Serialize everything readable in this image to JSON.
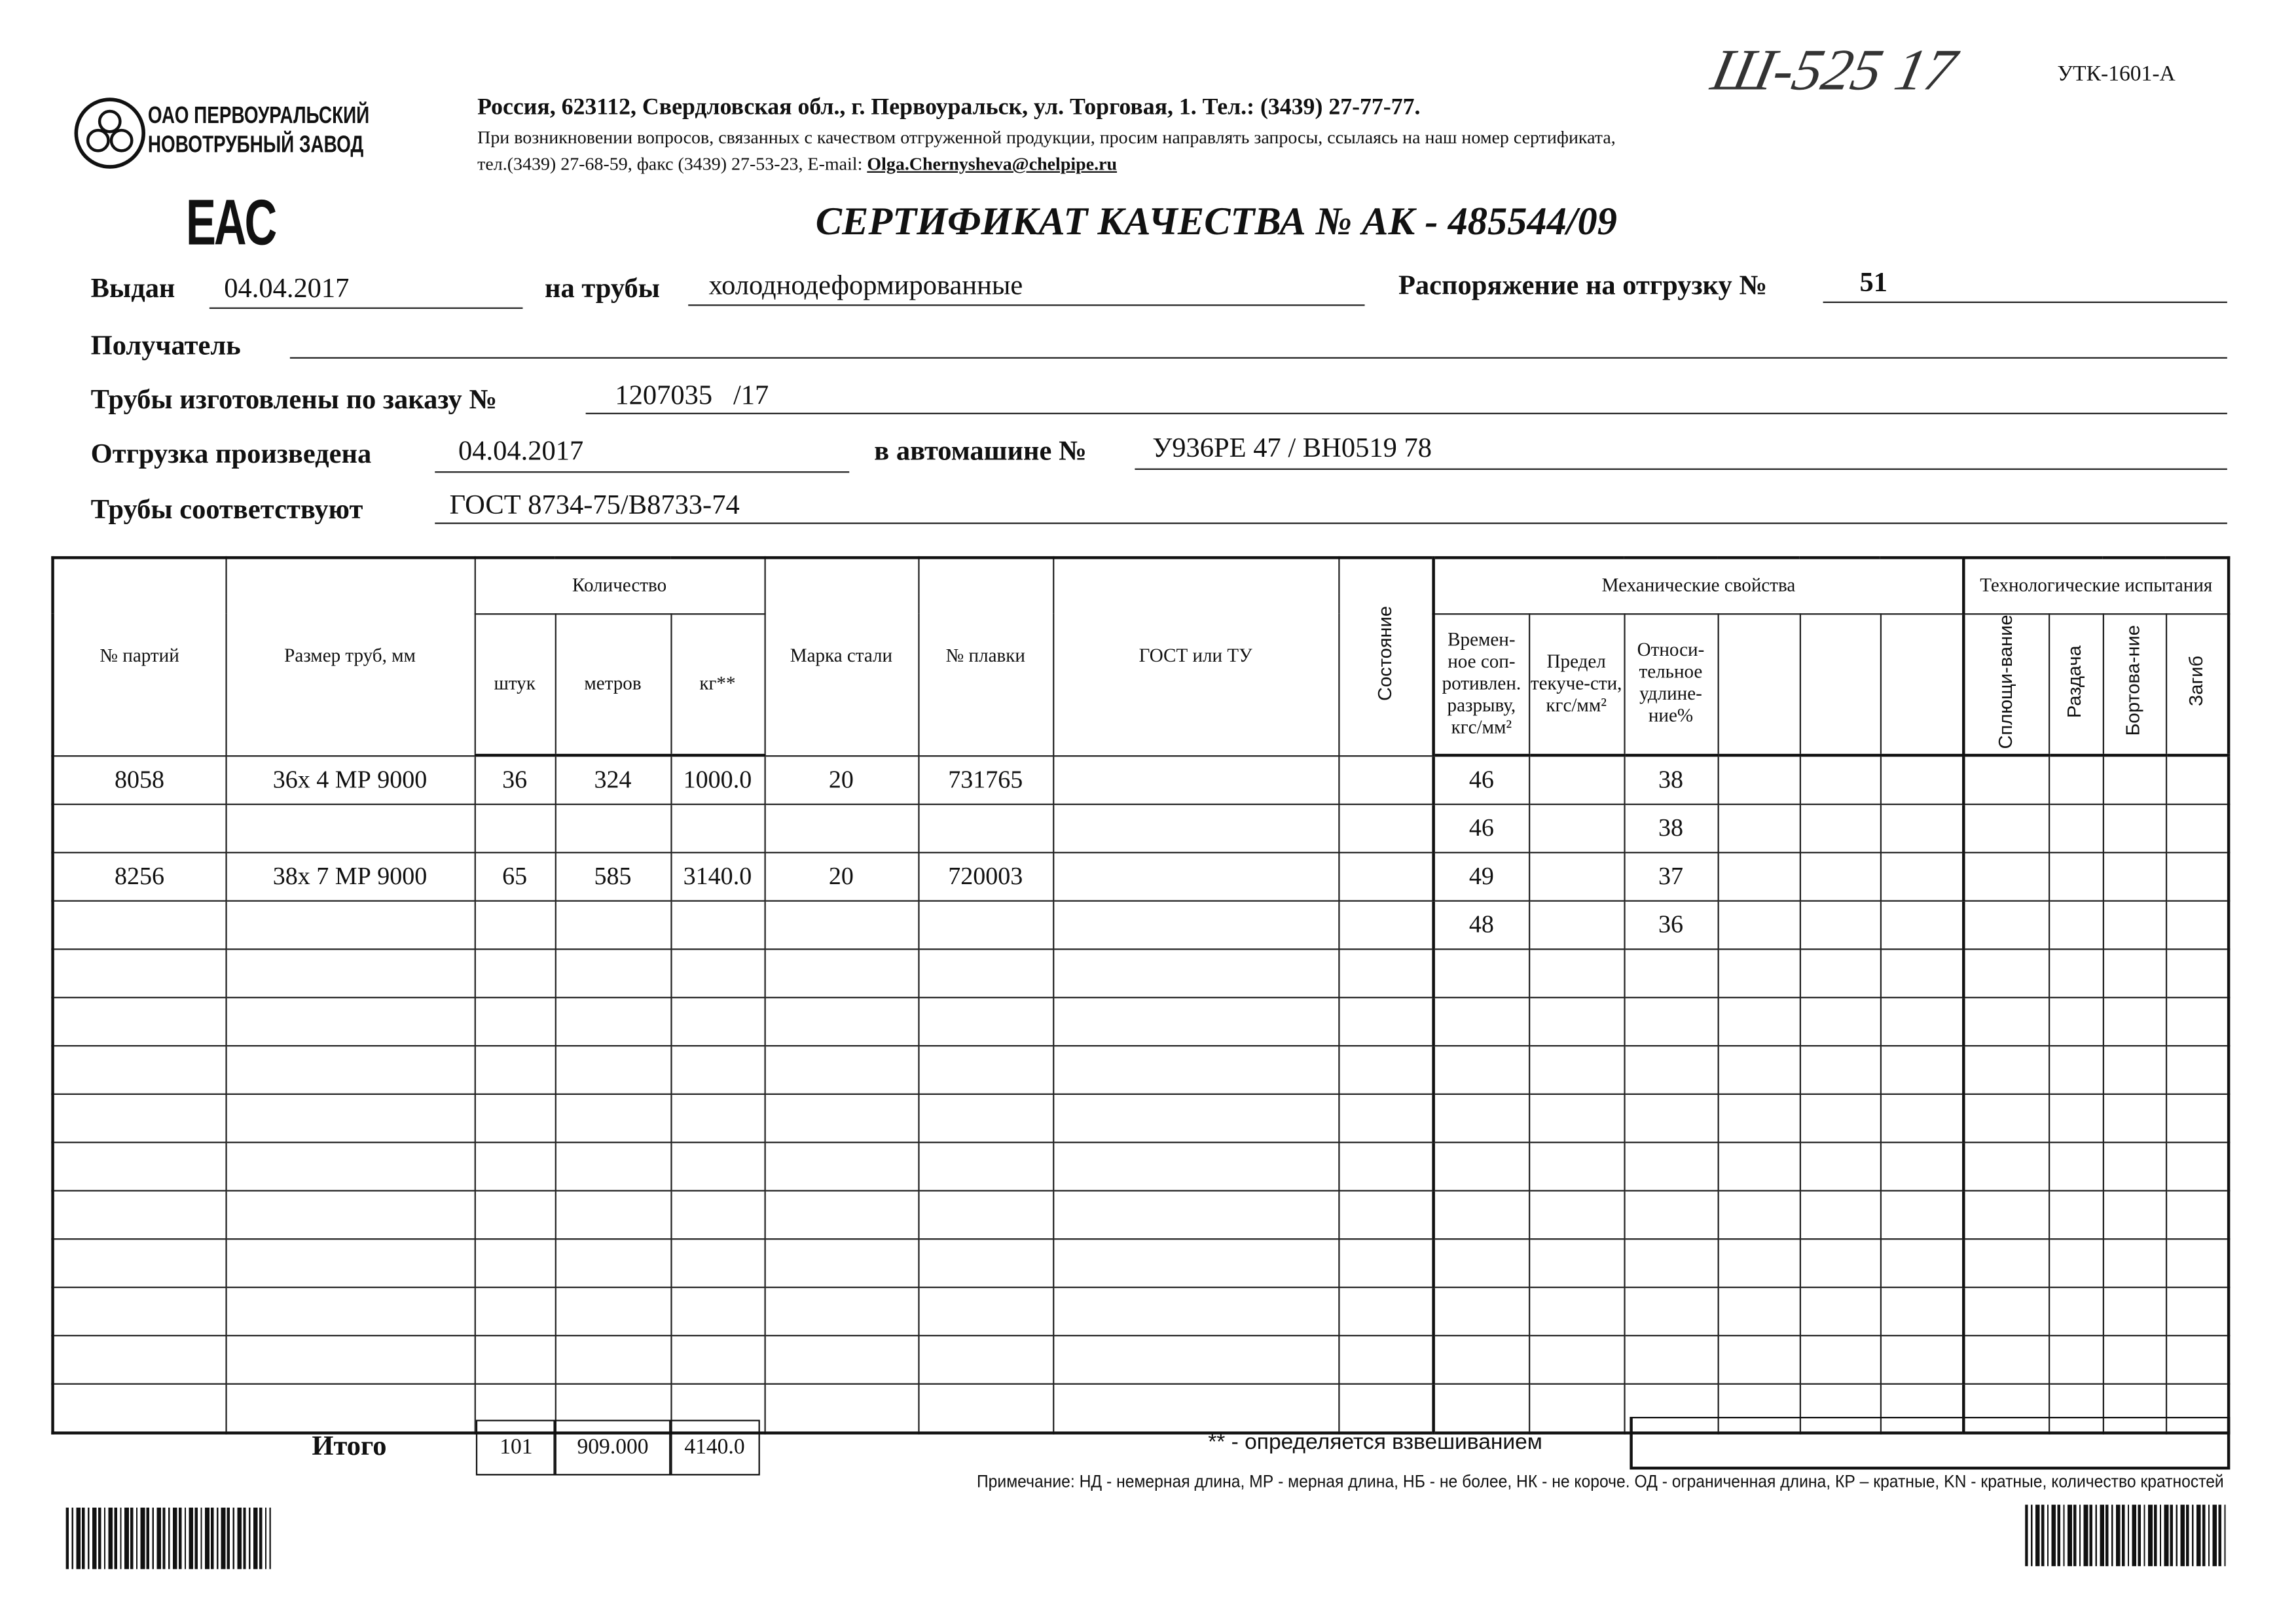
{
  "header": {
    "company_line1": "ОАО ПЕРВОУРАЛЬСКИЙ",
    "company_line2": "НОВОТРУБНЫЙ ЗАВОД",
    "address": "Россия, 623112, Свердловская обл., г. Первоуральск, ул. Торговая, 1. Тел.: (3439) 27-77-77.",
    "note_line1": "При возникновении вопросов, связанных с качеством отгруженной продукции, просим направлять запросы, ссылаясь на наш номер сертификата,",
    "note_line2_prefix": "тел.(3439) 27-68-59, факс (3439) 27-53-23,  E-mail: ",
    "email": "Olga.Chernysheva@chelpipe.ru",
    "handwritten_number": "Ш-525 17",
    "form_code": "УТК-1601-А",
    "eac_mark": "EAC",
    "title": "СЕРТИФИКАТ КАЧЕСТВА   №  АК -  485544/09"
  },
  "form": {
    "issued_label": "Выдан",
    "issued_value": "04.04.2017",
    "pipes_label": "на трубы",
    "pipes_value": "холоднодеформированные",
    "order_label": "Распоряжение на отгрузку №",
    "order_value": "51",
    "recipient_label": "Получатель",
    "recipient_value": "",
    "made_label": "Трубы изготовлены по заказу №",
    "made_value": "1207035   /17",
    "shipped_label": "Отгрузка произведена",
    "shipped_value": "04.04.2017",
    "vehicle_label": "в автомашине №",
    "vehicle_value": "У936РЕ 47 / ВН0519 78",
    "conform_label": "Трубы соответствуют",
    "conform_value": "ГОСТ 8734-75/В8733-74"
  },
  "table": {
    "h_lot": "№ партий",
    "h_size": "Размер труб, мм",
    "h_qty": "Количество",
    "h_pcs": "штук",
    "h_m": "метров",
    "h_kg": "кг**",
    "h_grade": "Марка стали",
    "h_heat": "№ плавки",
    "h_gost": "ГОСТ или ТУ",
    "h_state": "Состояние",
    "h_mech": "Механические свойства",
    "h_tensile": "Времен-ное соп-ротивлен. разрыву, кгс/мм²",
    "h_yield": "Предел текуче-сти, кгс/мм²",
    "h_elong": "Относи-тельное удлине-ние%",
    "h_tech": "Технологические испытания",
    "h_flat": "Сплющи-вание",
    "h_expand": "Раздача",
    "h_flange": "Бортова-ние",
    "h_bend": "Загиб",
    "rows": [
      {
        "lot": "8058",
        "size": "36х 4 МР 9000",
        "pcs": "36",
        "m": "324",
        "kg": "1000.0",
        "grade": "20",
        "heat": "731765",
        "tensile": "46",
        "elong": "38"
      },
      {
        "lot": "",
        "size": "",
        "pcs": "",
        "m": "",
        "kg": "",
        "grade": "",
        "heat": "",
        "tensile": "46",
        "elong": "38"
      },
      {
        "lot": "8256",
        "size": "38х 7 МР 9000",
        "pcs": "65",
        "m": "585",
        "kg": "3140.0",
        "grade": "20",
        "heat": "720003",
        "tensile": "49",
        "elong": "37"
      },
      {
        "lot": "",
        "size": "",
        "pcs": "",
        "m": "",
        "kg": "",
        "grade": "",
        "heat": "",
        "tensile": "48",
        "elong": "36"
      }
    ]
  },
  "totals": {
    "label": "Итого",
    "pcs": "101",
    "m": "909.000",
    "kg": "4140.0",
    "weigh_note": "** - определяется взвешиванием"
  },
  "footnote": "Примечание: НД - немерная длина, МР - мерная длина, НБ - не более, НК - не короче. ОД - ограниченная длина, КР – кратные, KN - кратные, количество кратностей"
}
